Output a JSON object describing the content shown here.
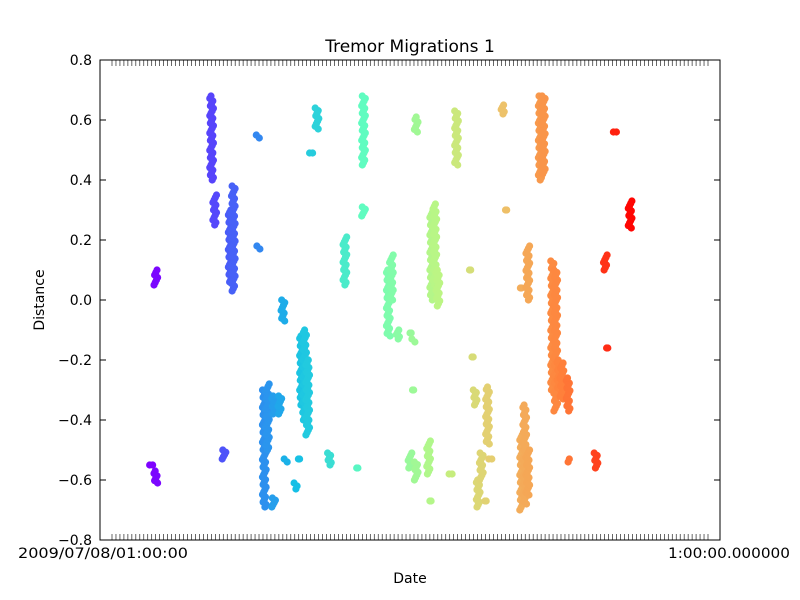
{
  "chart_data": {
    "type": "scatter",
    "title": "Tremor Migrations 1",
    "xlabel": "Date",
    "ylabel": "Distance",
    "ylim": [
      -0.8,
      0.8
    ],
    "y_ticks": [
      "−0.8",
      "−0.6",
      "−0.4",
      "−0.2",
      "0.0",
      "0.2",
      "0.4",
      "0.6",
      "0.8"
    ],
    "x_tick_text_left": "2009/07/08/01:00:00",
    "x_tick_text_right": "1:00:00.000000",
    "grid": false,
    "legend": "none",
    "color_scale": "rainbow (purple to red by time)",
    "migrations": [
      {
        "x": 0.09,
        "y": [
          0.05,
          0.1
        ]
      },
      {
        "x": 0.09,
        "y": [
          -0.61,
          -0.57
        ]
      },
      {
        "x": 0.083,
        "y": [
          -0.55,
          -0.55
        ]
      },
      {
        "x": 0.18,
        "y": [
          0.4,
          0.68
        ]
      },
      {
        "x": 0.185,
        "y": [
          0.25,
          0.35
        ]
      },
      {
        "x": 0.21,
        "y": [
          0.06,
          0.3
        ]
      },
      {
        "x": 0.215,
        "y": [
          0.03,
          0.38
        ]
      },
      {
        "x": 0.2,
        "y": [
          -0.53,
          -0.5
        ]
      },
      {
        "x": 0.255,
        "y": [
          0.17,
          0.18
        ]
      },
      {
        "x": 0.255,
        "y": [
          0.54,
          0.55
        ]
      },
      {
        "x": 0.265,
        "y": [
          -0.69,
          -0.3
        ]
      },
      {
        "x": 0.27,
        "y": [
          -0.5,
          -0.28
        ]
      },
      {
        "x": 0.28,
        "y": [
          -0.38,
          -0.32
        ]
      },
      {
        "x": 0.29,
        "y": [
          -0.38,
          -0.32
        ]
      },
      {
        "x": 0.28,
        "y": [
          -0.69,
          -0.66
        ]
      },
      {
        "x": 0.295,
        "y": [
          -0.07,
          0.0
        ]
      },
      {
        "x": 0.3,
        "y": [
          -0.54,
          -0.53
        ]
      },
      {
        "x": 0.315,
        "y": [
          -0.63,
          -0.61
        ]
      },
      {
        "x": 0.32,
        "y": [
          -0.53,
          -0.53
        ]
      },
      {
        "x": 0.325,
        "y": [
          -0.35,
          -0.12
        ]
      },
      {
        "x": 0.33,
        "y": [
          -0.4,
          -0.1
        ]
      },
      {
        "x": 0.335,
        "y": [
          -0.45,
          -0.2
        ]
      },
      {
        "x": 0.34,
        "y": [
          0.49,
          0.49
        ]
      },
      {
        "x": 0.35,
        "y": [
          0.57,
          0.64
        ]
      },
      {
        "x": 0.37,
        "y": [
          -0.55,
          -0.51
        ]
      },
      {
        "x": 0.395,
        "y": [
          0.05,
          0.21
        ]
      },
      {
        "x": 0.415,
        "y": [
          -0.56,
          -0.56
        ]
      },
      {
        "x": 0.425,
        "y": [
          0.45,
          0.68
        ]
      },
      {
        "x": 0.425,
        "y": [
          0.28,
          0.31
        ]
      },
      {
        "x": 0.465,
        "y": [
          -0.12,
          0.1
        ]
      },
      {
        "x": 0.47,
        "y": [
          0.0,
          0.15
        ]
      },
      {
        "x": 0.48,
        "y": [
          -0.13,
          -0.1
        ]
      },
      {
        "x": 0.5,
        "y": [
          -0.11,
          -0.11
        ]
      },
      {
        "x": 0.505,
        "y": [
          -0.3,
          -0.3
        ]
      },
      {
        "x": 0.5,
        "y": [
          -0.56,
          -0.51
        ]
      },
      {
        "x": 0.51,
        "y": [
          -0.6,
          -0.54
        ]
      },
      {
        "x": 0.505,
        "y": [
          -0.14,
          -0.13
        ]
      },
      {
        "x": 0.51,
        "y": [
          0.56,
          0.61
        ]
      },
      {
        "x": 0.535,
        "y": [
          0.0,
          0.3
        ]
      },
      {
        "x": 0.54,
        "y": [
          0.05,
          0.32
        ]
      },
      {
        "x": 0.545,
        "y": [
          -0.02,
          0.1
        ]
      },
      {
        "x": 0.53,
        "y": [
          -0.58,
          -0.47
        ]
      },
      {
        "x": 0.535,
        "y": [
          -0.67,
          -0.67
        ]
      },
      {
        "x": 0.565,
        "y": [
          -0.58,
          -0.58
        ]
      },
      {
        "x": 0.575,
        "y": [
          0.45,
          0.63
        ]
      },
      {
        "x": 0.595,
        "y": [
          0.1,
          0.1
        ]
      },
      {
        "x": 0.6,
        "y": [
          -0.19,
          -0.19
        ]
      },
      {
        "x": 0.605,
        "y": [
          -0.35,
          -0.3
        ]
      },
      {
        "x": 0.61,
        "y": [
          -0.69,
          -0.6
        ]
      },
      {
        "x": 0.615,
        "y": [
          -0.6,
          -0.51
        ]
      },
      {
        "x": 0.625,
        "y": [
          -0.48,
          -0.29
        ]
      },
      {
        "x": 0.63,
        "y": [
          -0.53,
          -0.53
        ]
      },
      {
        "x": 0.62,
        "y": [
          -0.67,
          -0.67
        ]
      },
      {
        "x": 0.65,
        "y": [
          0.62,
          0.65
        ]
      },
      {
        "x": 0.655,
        "y": [
          0.3,
          0.3
        ]
      },
      {
        "x": 0.68,
        "y": [
          0.04,
          0.04
        ]
      },
      {
        "x": 0.68,
        "y": [
          -0.7,
          -0.45
        ]
      },
      {
        "x": 0.685,
        "y": [
          -0.68,
          -0.35
        ]
      },
      {
        "x": 0.69,
        "y": [
          -0.65,
          -0.5
        ]
      },
      {
        "x": 0.69,
        "y": [
          0.0,
          0.18
        ]
      },
      {
        "x": 0.71,
        "y": [
          0.4,
          0.68
        ]
      },
      {
        "x": 0.715,
        "y": [
          0.42,
          0.68
        ]
      },
      {
        "x": 0.73,
        "y": [
          -0.3,
          0.13
        ]
      },
      {
        "x": 0.735,
        "y": [
          -0.37,
          0.1
        ]
      },
      {
        "x": 0.74,
        "y": [
          -0.3,
          -0.2
        ]
      },
      {
        "x": 0.745,
        "y": [
          -0.33,
          -0.21
        ]
      },
      {
        "x": 0.755,
        "y": [
          -0.37,
          -0.26
        ]
      },
      {
        "x": 0.755,
        "y": [
          -0.54,
          -0.53
        ]
      },
      {
        "x": 0.8,
        "y": [
          -0.56,
          -0.51
        ]
      },
      {
        "x": 0.815,
        "y": [
          0.1,
          0.15
        ]
      },
      {
        "x": 0.82,
        "y": [
          -0.16,
          -0.16
        ]
      },
      {
        "x": 0.83,
        "y": [
          0.56,
          0.56
        ]
      },
      {
        "x": 0.855,
        "y": [
          0.24,
          0.33
        ]
      }
    ]
  }
}
